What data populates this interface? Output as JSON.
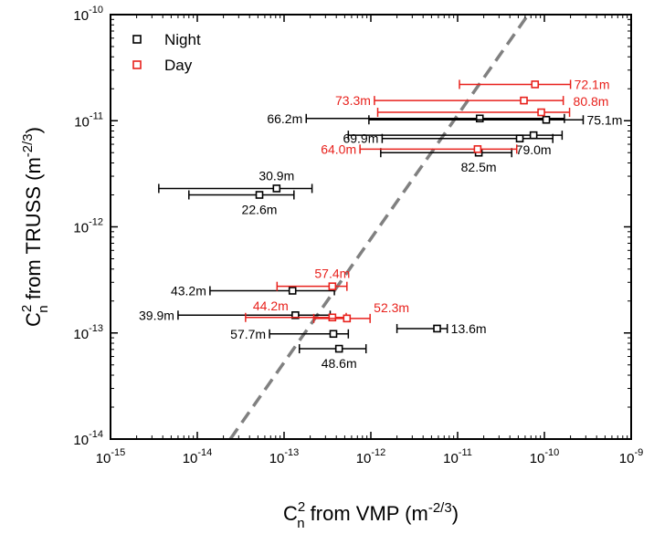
{
  "chart_data": {
    "type": "scatter",
    "x_scale": "log",
    "y_scale": "log",
    "xlim": [
      1e-15,
      1e-09
    ],
    "ylim": [
      1e-14,
      1e-10
    ],
    "xlabel": {
      "base": "C",
      "sup": "2",
      "sub": "n",
      "text": " from VMP (m",
      "unit_sup": "-2/3",
      "end": ")"
    },
    "ylabel": {
      "base": "C",
      "sup": "2",
      "sub": "n",
      "text": "  from TRUSS (m",
      "unit_sup": "-2/3",
      "end": ")"
    },
    "x_ticks": [
      {
        "value": 1e-15,
        "base": "10",
        "exp": "-15"
      },
      {
        "value": 1e-14,
        "base": "10",
        "exp": "-14"
      },
      {
        "value": 1e-13,
        "base": "10",
        "exp": "-13"
      },
      {
        "value": 1e-12,
        "base": "10",
        "exp": "-12"
      },
      {
        "value": 1e-11,
        "base": "10",
        "exp": "-11"
      },
      {
        "value": 1e-10,
        "base": "10",
        "exp": "-10"
      },
      {
        "value": 1e-09,
        "base": "10",
        "exp": "-9"
      }
    ],
    "y_ticks": [
      {
        "value": 1e-14,
        "base": "10",
        "exp": "-14"
      },
      {
        "value": 1e-13,
        "base": "10",
        "exp": "-13"
      },
      {
        "value": 1e-12,
        "base": "10",
        "exp": "-12"
      },
      {
        "value": 1e-11,
        "base": "10",
        "exp": "-11"
      },
      {
        "value": 1e-10,
        "base": "10",
        "exp": "-10"
      }
    ],
    "reference_line": {
      "style": "dashed",
      "color": "#808080",
      "x": [
        2.4e-14,
        6.5e-11
      ],
      "y": [
        1e-14,
        1e-10
      ]
    },
    "legend": {
      "position": "top-left",
      "entries": [
        {
          "name": "Night",
          "color": "#000000"
        },
        {
          "name": "Day",
          "color": "#e8211c"
        }
      ]
    },
    "series": [
      {
        "name": "Night",
        "color": "#000000",
        "points": [
          {
            "label": "66.2m",
            "x": 1.8e-11,
            "xmin": 1.8e-13,
            "xmax": 1.7e-10,
            "y": 1.05e-11,
            "label_side": "left"
          },
          {
            "label": "75.1m",
            "x": 1.05e-10,
            "xmin": 9.5e-13,
            "xmax": 2.8e-10,
            "y": 1.02e-11,
            "label_side": "right"
          },
          {
            "label": "69.9m",
            "x": 5.2e-11,
            "xmin": 1.35e-12,
            "xmax": 1.25e-10,
            "y": 6.8e-12,
            "label_side": "left"
          },
          {
            "label": "79.0m",
            "x": 7.5e-11,
            "xmin": 5.5e-13,
            "xmax": 1.6e-10,
            "y": 7.3e-12,
            "label_side": "below"
          },
          {
            "label": "82.5m",
            "x": 1.75e-11,
            "xmin": 1.3e-12,
            "xmax": 4.2e-11,
            "y": 5e-12,
            "label_side": "below"
          },
          {
            "label": "30.9m",
            "x": 8.2e-14,
            "xmin": 3.6e-15,
            "xmax": 2.1e-13,
            "y": 2.3e-12,
            "label_side": "above"
          },
          {
            "label": "22.6m",
            "x": 5.2e-14,
            "xmin": 8e-15,
            "xmax": 1.3e-13,
            "y": 2e-12,
            "label_side": "below"
          },
          {
            "label": "43.2m",
            "x": 1.25e-13,
            "xmin": 1.4e-14,
            "xmax": 3.8e-13,
            "y": 2.5e-13,
            "label_side": "left"
          },
          {
            "label": "39.9m",
            "x": 1.35e-13,
            "xmin": 6e-15,
            "xmax": 3.4e-13,
            "y": 1.47e-13,
            "label_side": "left"
          },
          {
            "label": "57.7m",
            "x": 3.7e-13,
            "xmin": 6.8e-14,
            "xmax": 5.5e-13,
            "y": 9.8e-14,
            "label_side": "left"
          },
          {
            "label": "48.6m",
            "x": 4.3e-13,
            "xmin": 1.5e-13,
            "xmax": 8.8e-13,
            "y": 7.1e-14,
            "label_side": "below"
          },
          {
            "label": "13.6m",
            "x": 5.8e-12,
            "xmin": 2e-12,
            "xmax": 7.6e-12,
            "y": 1.1e-13,
            "label_side": "right"
          }
        ]
      },
      {
        "name": "Day",
        "color": "#e8211c",
        "points": [
          {
            "label": "72.1m",
            "x": 7.8e-11,
            "xmin": 1.05e-11,
            "xmax": 2e-10,
            "y": 2.2e-11,
            "label_side": "right"
          },
          {
            "label": "73.3m",
            "x": 5.8e-11,
            "xmin": 1.1e-12,
            "xmax": 1.65e-10,
            "y": 1.55e-11,
            "label_side": "left"
          },
          {
            "label": "80.8m",
            "x": 9.2e-11,
            "xmin": 1.2e-12,
            "xmax": 1.95e-10,
            "y": 1.2e-11,
            "label_side": "above-right"
          },
          {
            "label": "64.0m",
            "x": 1.7e-11,
            "xmin": 7.5e-13,
            "xmax": 4.8e-11,
            "y": 5.4e-12,
            "label_side": "left"
          },
          {
            "label": "57.4m",
            "x": 3.6e-13,
            "xmin": 8.3e-14,
            "xmax": 5.3e-13,
            "y": 2.75e-13,
            "label_side": "above"
          },
          {
            "label": "44.2m",
            "x": 3.6e-13,
            "xmin": 3.6e-14,
            "xmax": 5.2e-13,
            "y": 1.4e-13,
            "label_side": "above-left"
          },
          {
            "label": "52.3m",
            "x": 5.3e-13,
            "xmin": 2.2e-13,
            "xmax": 9.8e-13,
            "y": 1.37e-13,
            "label_side": "above-right"
          }
        ]
      }
    ]
  }
}
